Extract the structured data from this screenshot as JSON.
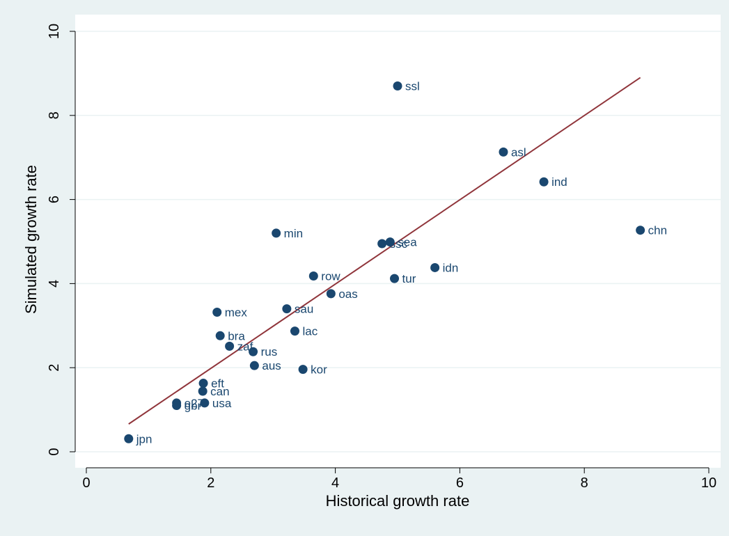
{
  "chart_data": {
    "type": "scatter",
    "xlabel": "Historical growth rate",
    "ylabel": "Simulated growth rate",
    "xlim": [
      0,
      10
    ],
    "ylim": [
      0,
      10
    ],
    "xticks": [
      "0",
      "2",
      "4",
      "6",
      "8",
      "10"
    ],
    "yticks": [
      "0",
      "2",
      "4",
      "6",
      "8",
      "10"
    ],
    "grid": true,
    "colors": {
      "marker": "#1a476f",
      "fit_line": "#90353b",
      "plot_bg": "#ffffff",
      "outer_bg": "#eaf2f3",
      "grid": "#eaf2f3"
    },
    "points": [
      {
        "label": "ssl",
        "x": 5.0,
        "y": 8.7
      },
      {
        "label": "asl",
        "x": 6.7,
        "y": 7.13
      },
      {
        "label": "ind",
        "x": 7.35,
        "y": 6.42
      },
      {
        "label": "chn",
        "x": 8.9,
        "y": 5.27
      },
      {
        "label": "min",
        "x": 3.05,
        "y": 5.2
      },
      {
        "label": "sea",
        "x": 4.88,
        "y": 4.99
      },
      {
        "label": "ssc",
        "x": 4.75,
        "y": 4.95
      },
      {
        "label": "idn",
        "x": 5.6,
        "y": 4.38
      },
      {
        "label": "row",
        "x": 3.65,
        "y": 4.18
      },
      {
        "label": "tur",
        "x": 4.95,
        "y": 4.12
      },
      {
        "label": "oas",
        "x": 3.93,
        "y": 3.76
      },
      {
        "label": "sau",
        "x": 3.22,
        "y": 3.4
      },
      {
        "label": "mex",
        "x": 2.1,
        "y": 3.32
      },
      {
        "label": "lac",
        "x": 3.35,
        "y": 2.87
      },
      {
        "label": "bra",
        "x": 2.15,
        "y": 2.76
      },
      {
        "label": "zaf",
        "x": 2.3,
        "y": 2.51
      },
      {
        "label": "rus",
        "x": 2.68,
        "y": 2.38
      },
      {
        "label": "aus",
        "x": 2.7,
        "y": 2.05
      },
      {
        "label": "kor",
        "x": 3.48,
        "y": 1.96
      },
      {
        "label": "eft",
        "x": 1.88,
        "y": 1.63
      },
      {
        "label": "can",
        "x": 1.87,
        "y": 1.44
      },
      {
        "label": "e27",
        "x": 1.45,
        "y": 1.16
      },
      {
        "label": "usa",
        "x": 1.9,
        "y": 1.16
      },
      {
        "label": "gbr",
        "x": 1.45,
        "y": 1.1
      },
      {
        "label": "jpn",
        "x": 0.68,
        "y": 0.31
      }
    ],
    "fit_line": {
      "x": [
        0.68,
        8.9
      ],
      "y": [
        0.66,
        8.9
      ]
    }
  }
}
